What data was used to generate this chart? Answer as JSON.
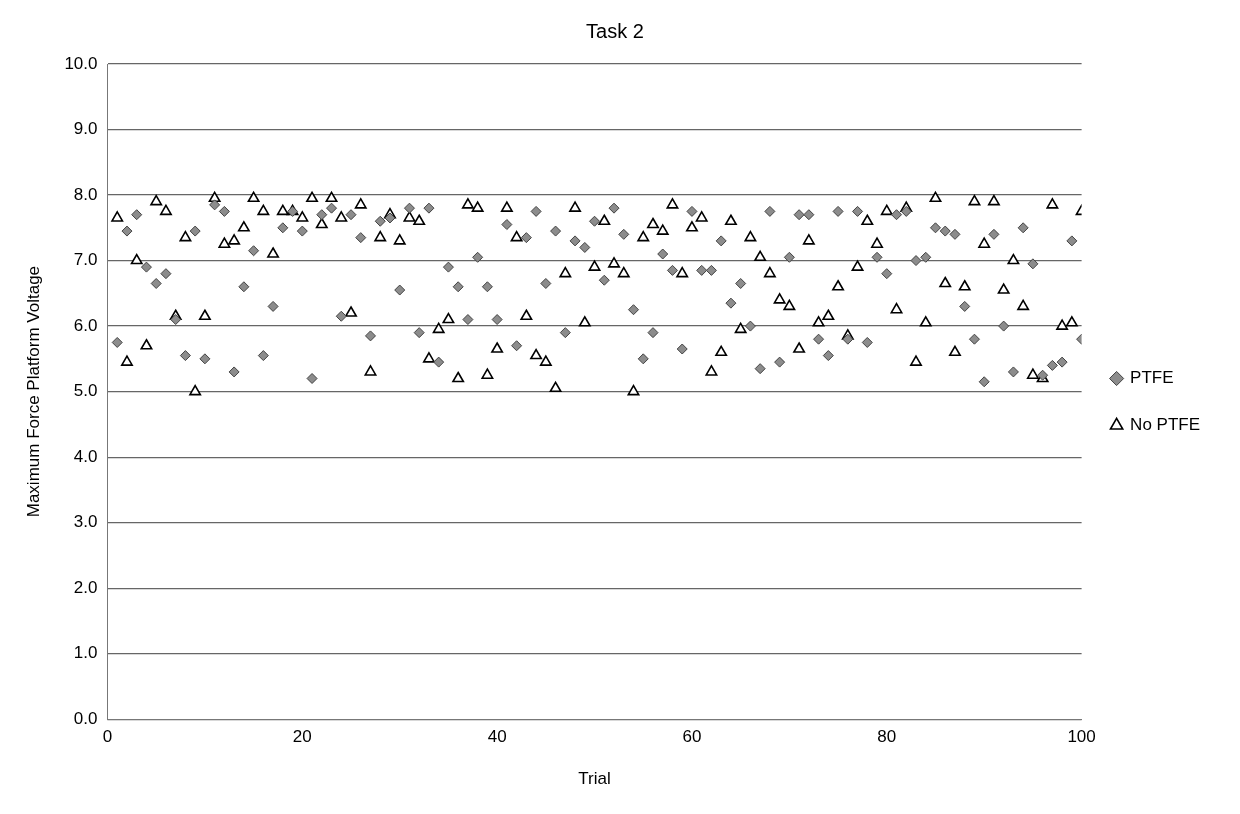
{
  "chart_data": {
    "type": "scatter",
    "title": "Task 2",
    "xlabel": "Trial",
    "ylabel": "Maximum Force Platform Voltage",
    "x": [
      1,
      2,
      3,
      4,
      5,
      6,
      7,
      8,
      9,
      10,
      11,
      12,
      13,
      14,
      15,
      16,
      17,
      18,
      19,
      20,
      21,
      22,
      23,
      24,
      25,
      26,
      27,
      28,
      29,
      30,
      31,
      32,
      33,
      34,
      35,
      36,
      37,
      38,
      39,
      40,
      41,
      42,
      43,
      44,
      45,
      46,
      47,
      48,
      49,
      50,
      51,
      52,
      53,
      54,
      55,
      56,
      57,
      58,
      59,
      60,
      61,
      62,
      63,
      64,
      65,
      66,
      67,
      68,
      69,
      70,
      71,
      72,
      73,
      74,
      75,
      76,
      77,
      78,
      79,
      80,
      81,
      82,
      83,
      84,
      85,
      86,
      87,
      88,
      89,
      90,
      91,
      92,
      93,
      94,
      95,
      96,
      97,
      98,
      99,
      100
    ],
    "series": [
      {
        "name": "PTFE",
        "color": "#8c8c8c",
        "marker": "diamond",
        "values": [
          5.75,
          7.45,
          7.7,
          6.9,
          6.65,
          6.8,
          6.1,
          5.55,
          7.45,
          5.5,
          7.85,
          7.75,
          5.3,
          6.6,
          7.15,
          5.55,
          6.3,
          7.5,
          7.75,
          7.45,
          5.2,
          7.7,
          7.8,
          6.15,
          7.7,
          7.35,
          5.85,
          7.6,
          7.65,
          6.55,
          7.8,
          5.9,
          7.8,
          5.45,
          6.9,
          6.6,
          6.1,
          7.05,
          6.6,
          6.1,
          7.55,
          5.7,
          7.35,
          7.75,
          6.65,
          7.45,
          5.9,
          7.3,
          7.2,
          7.6,
          6.7,
          7.8,
          7.4,
          6.25,
          5.5,
          5.9,
          7.1,
          6.85,
          5.65,
          7.75,
          6.85,
          6.85,
          7.3,
          6.35,
          6.65,
          6.0,
          5.35,
          7.75,
          5.45,
          7.05,
          7.7,
          7.7,
          5.8,
          5.55,
          7.75,
          5.8,
          7.75,
          5.75,
          7.05,
          6.8,
          7.7,
          7.75,
          7.0,
          7.05,
          7.5,
          7.45,
          7.4,
          6.3,
          5.8,
          5.15,
          7.4,
          6.0,
          5.3,
          7.5,
          6.95,
          5.25,
          5.4,
          5.45,
          7.3,
          5.8
        ]
      },
      {
        "name": "No PTFE",
        "color": "#000000",
        "marker": "triangle",
        "values": [
          7.65,
          5.45,
          7.0,
          5.7,
          7.9,
          7.75,
          6.15,
          7.35,
          5.0,
          6.15,
          7.95,
          7.25,
          7.3,
          7.5,
          7.95,
          7.75,
          7.1,
          7.75,
          7.75,
          7.65,
          7.95,
          7.55,
          7.95,
          7.65,
          6.2,
          7.85,
          5.3,
          7.35,
          7.7,
          7.3,
          7.65,
          7.6,
          5.5,
          5.95,
          6.1,
          5.2,
          7.85,
          7.8,
          5.25,
          5.65,
          7.8,
          7.35,
          6.15,
          5.55,
          5.45,
          5.05,
          6.8,
          7.8,
          6.05,
          6.9,
          7.6,
          6.95,
          6.8,
          5.0,
          7.35,
          7.55,
          7.45,
          7.85,
          6.8,
          7.5,
          7.65,
          5.3,
          5.6,
          7.6,
          5.95,
          7.35,
          7.05,
          6.8,
          6.4,
          6.3,
          5.65,
          7.3,
          6.05,
          6.15,
          6.6,
          5.85,
          6.9,
          7.6,
          7.25,
          7.75,
          6.25,
          7.8,
          5.45,
          6.05,
          7.95,
          6.65,
          5.6,
          6.6,
          7.9,
          7.25,
          7.9,
          6.55,
          7.0,
          6.3,
          5.25,
          5.2,
          7.85,
          6.0,
          6.05,
          7.75
        ]
      }
    ],
    "xlim": [
      0,
      100
    ],
    "xticks": [
      0,
      20,
      40,
      60,
      80,
      100
    ],
    "ylim": [
      0,
      10
    ],
    "yticks": [
      {
        "value": 0,
        "label": "0.0"
      },
      {
        "value": 1,
        "label": "1.0"
      },
      {
        "value": 2,
        "label": "2.0"
      },
      {
        "value": 3,
        "label": "3.0"
      },
      {
        "value": 4,
        "label": "4.0"
      },
      {
        "value": 5,
        "label": "5.0"
      },
      {
        "value": 6,
        "label": "6.0"
      },
      {
        "value": 7,
        "label": "7.0"
      },
      {
        "value": 8,
        "label": "8.0"
      },
      {
        "value": 9,
        "label": "9.0"
      },
      {
        "value": 10,
        "label": "10.0"
      }
    ],
    "grid": "y",
    "legend": "right"
  }
}
